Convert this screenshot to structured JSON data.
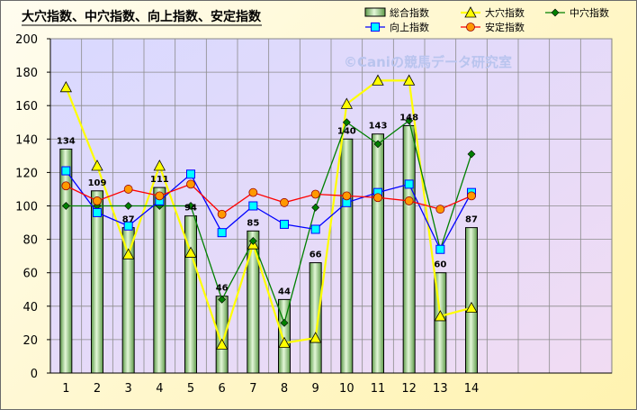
{
  "chart_data": {
    "type": "bar",
    "title": "大穴指数、中穴指数、向上指数、安定指数",
    "watermark": "©Caniの競馬データ研究室",
    "categories": [
      "1",
      "2",
      "3",
      "4",
      "5",
      "6",
      "7",
      "8",
      "9",
      "10",
      "11",
      "12",
      "13",
      "14"
    ],
    "ylim": [
      0,
      200
    ],
    "yticks": [
      0,
      20,
      40,
      60,
      80,
      100,
      120,
      140,
      160,
      180,
      200
    ],
    "grid": true,
    "legend_position": "top-right",
    "series": [
      {
        "name": "総合指数",
        "type": "bar",
        "color": "#9ed08e",
        "values": [
          134,
          109,
          87,
          111,
          94,
          46,
          85,
          44,
          66,
          140,
          143,
          148,
          60,
          87
        ]
      },
      {
        "name": "大穴指数",
        "type": "line",
        "color": "#ffff00",
        "marker": "triangle",
        "values": [
          171,
          124,
          71,
          124,
          72,
          17,
          77,
          18,
          21,
          161,
          175,
          175,
          34,
          39
        ]
      },
      {
        "name": "中穴指数",
        "type": "line",
        "color": "#008000",
        "marker": "diamond",
        "values": [
          100,
          100,
          100,
          100,
          100,
          44,
          79,
          30,
          99,
          150,
          137,
          151,
          74,
          131
        ]
      },
      {
        "name": "向上指数",
        "type": "line",
        "color": "#0000ff",
        "marker": "square",
        "values": [
          121,
          96,
          88,
          103,
          119,
          84,
          100,
          89,
          86,
          102,
          108,
          113,
          74,
          108
        ]
      },
      {
        "name": "安定指数",
        "type": "line",
        "color": "#ff0000",
        "marker": "circle",
        "values": [
          112,
          103,
          110,
          106,
          113,
          95,
          108,
          102,
          107,
          106,
          105,
          103,
          98,
          106
        ]
      }
    ]
  }
}
